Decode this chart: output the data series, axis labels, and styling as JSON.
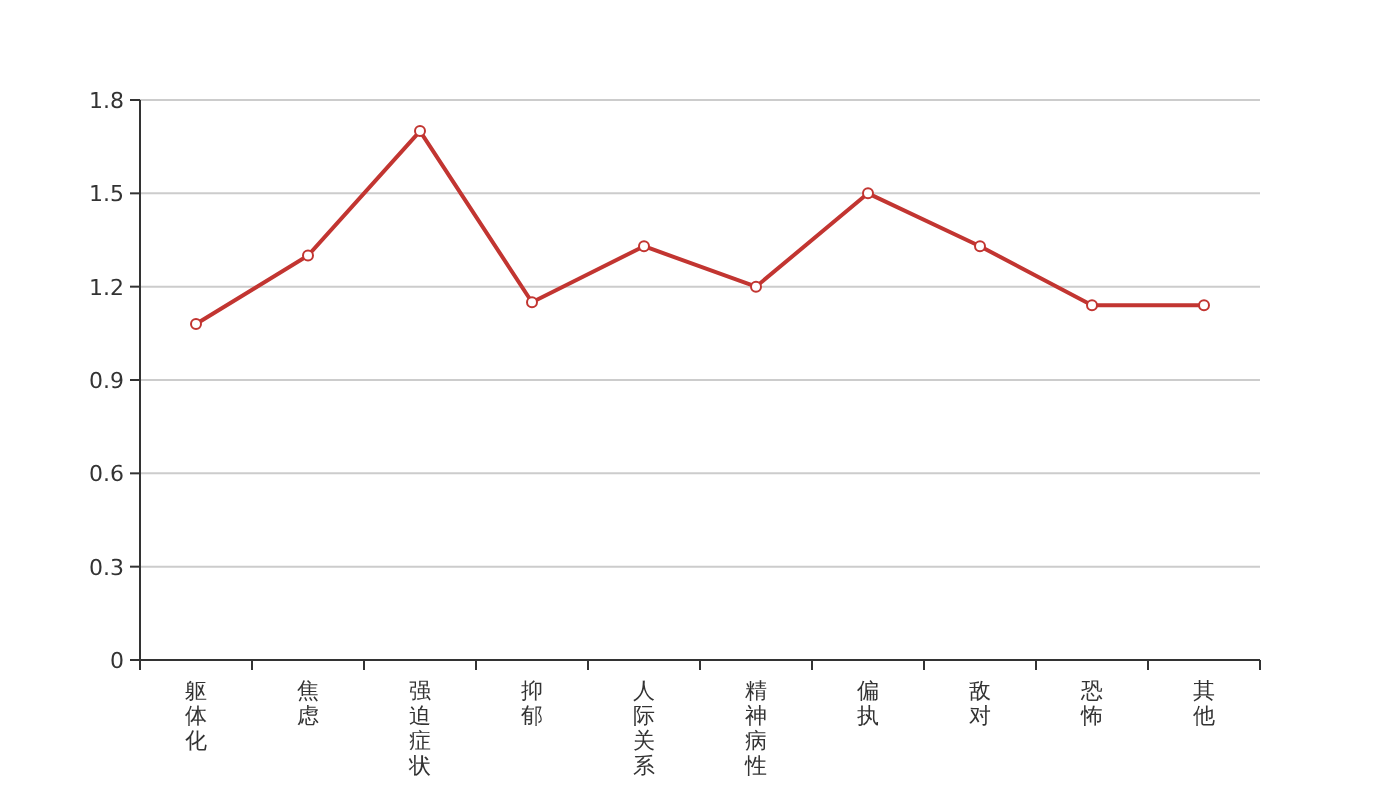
{
  "chart_data": {
    "type": "line",
    "categories": [
      "躯体化",
      "焦虑",
      "强迫症状",
      "抑郁",
      "人际关系",
      "精神病性",
      "偏执",
      "敌对",
      "恐怖",
      "其他"
    ],
    "series": [
      {
        "color": "#c23531",
        "values": [
          1.08,
          1.3,
          1.7,
          1.15,
          1.33,
          1.2,
          1.5,
          1.33,
          1.14,
          1.14
        ]
      }
    ],
    "ylim": [
      0,
      1.8
    ],
    "yticks": [
      0,
      0.3,
      0.6,
      0.9,
      1.2,
      1.5,
      1.8
    ],
    "grid": "y",
    "marker": "circle"
  }
}
